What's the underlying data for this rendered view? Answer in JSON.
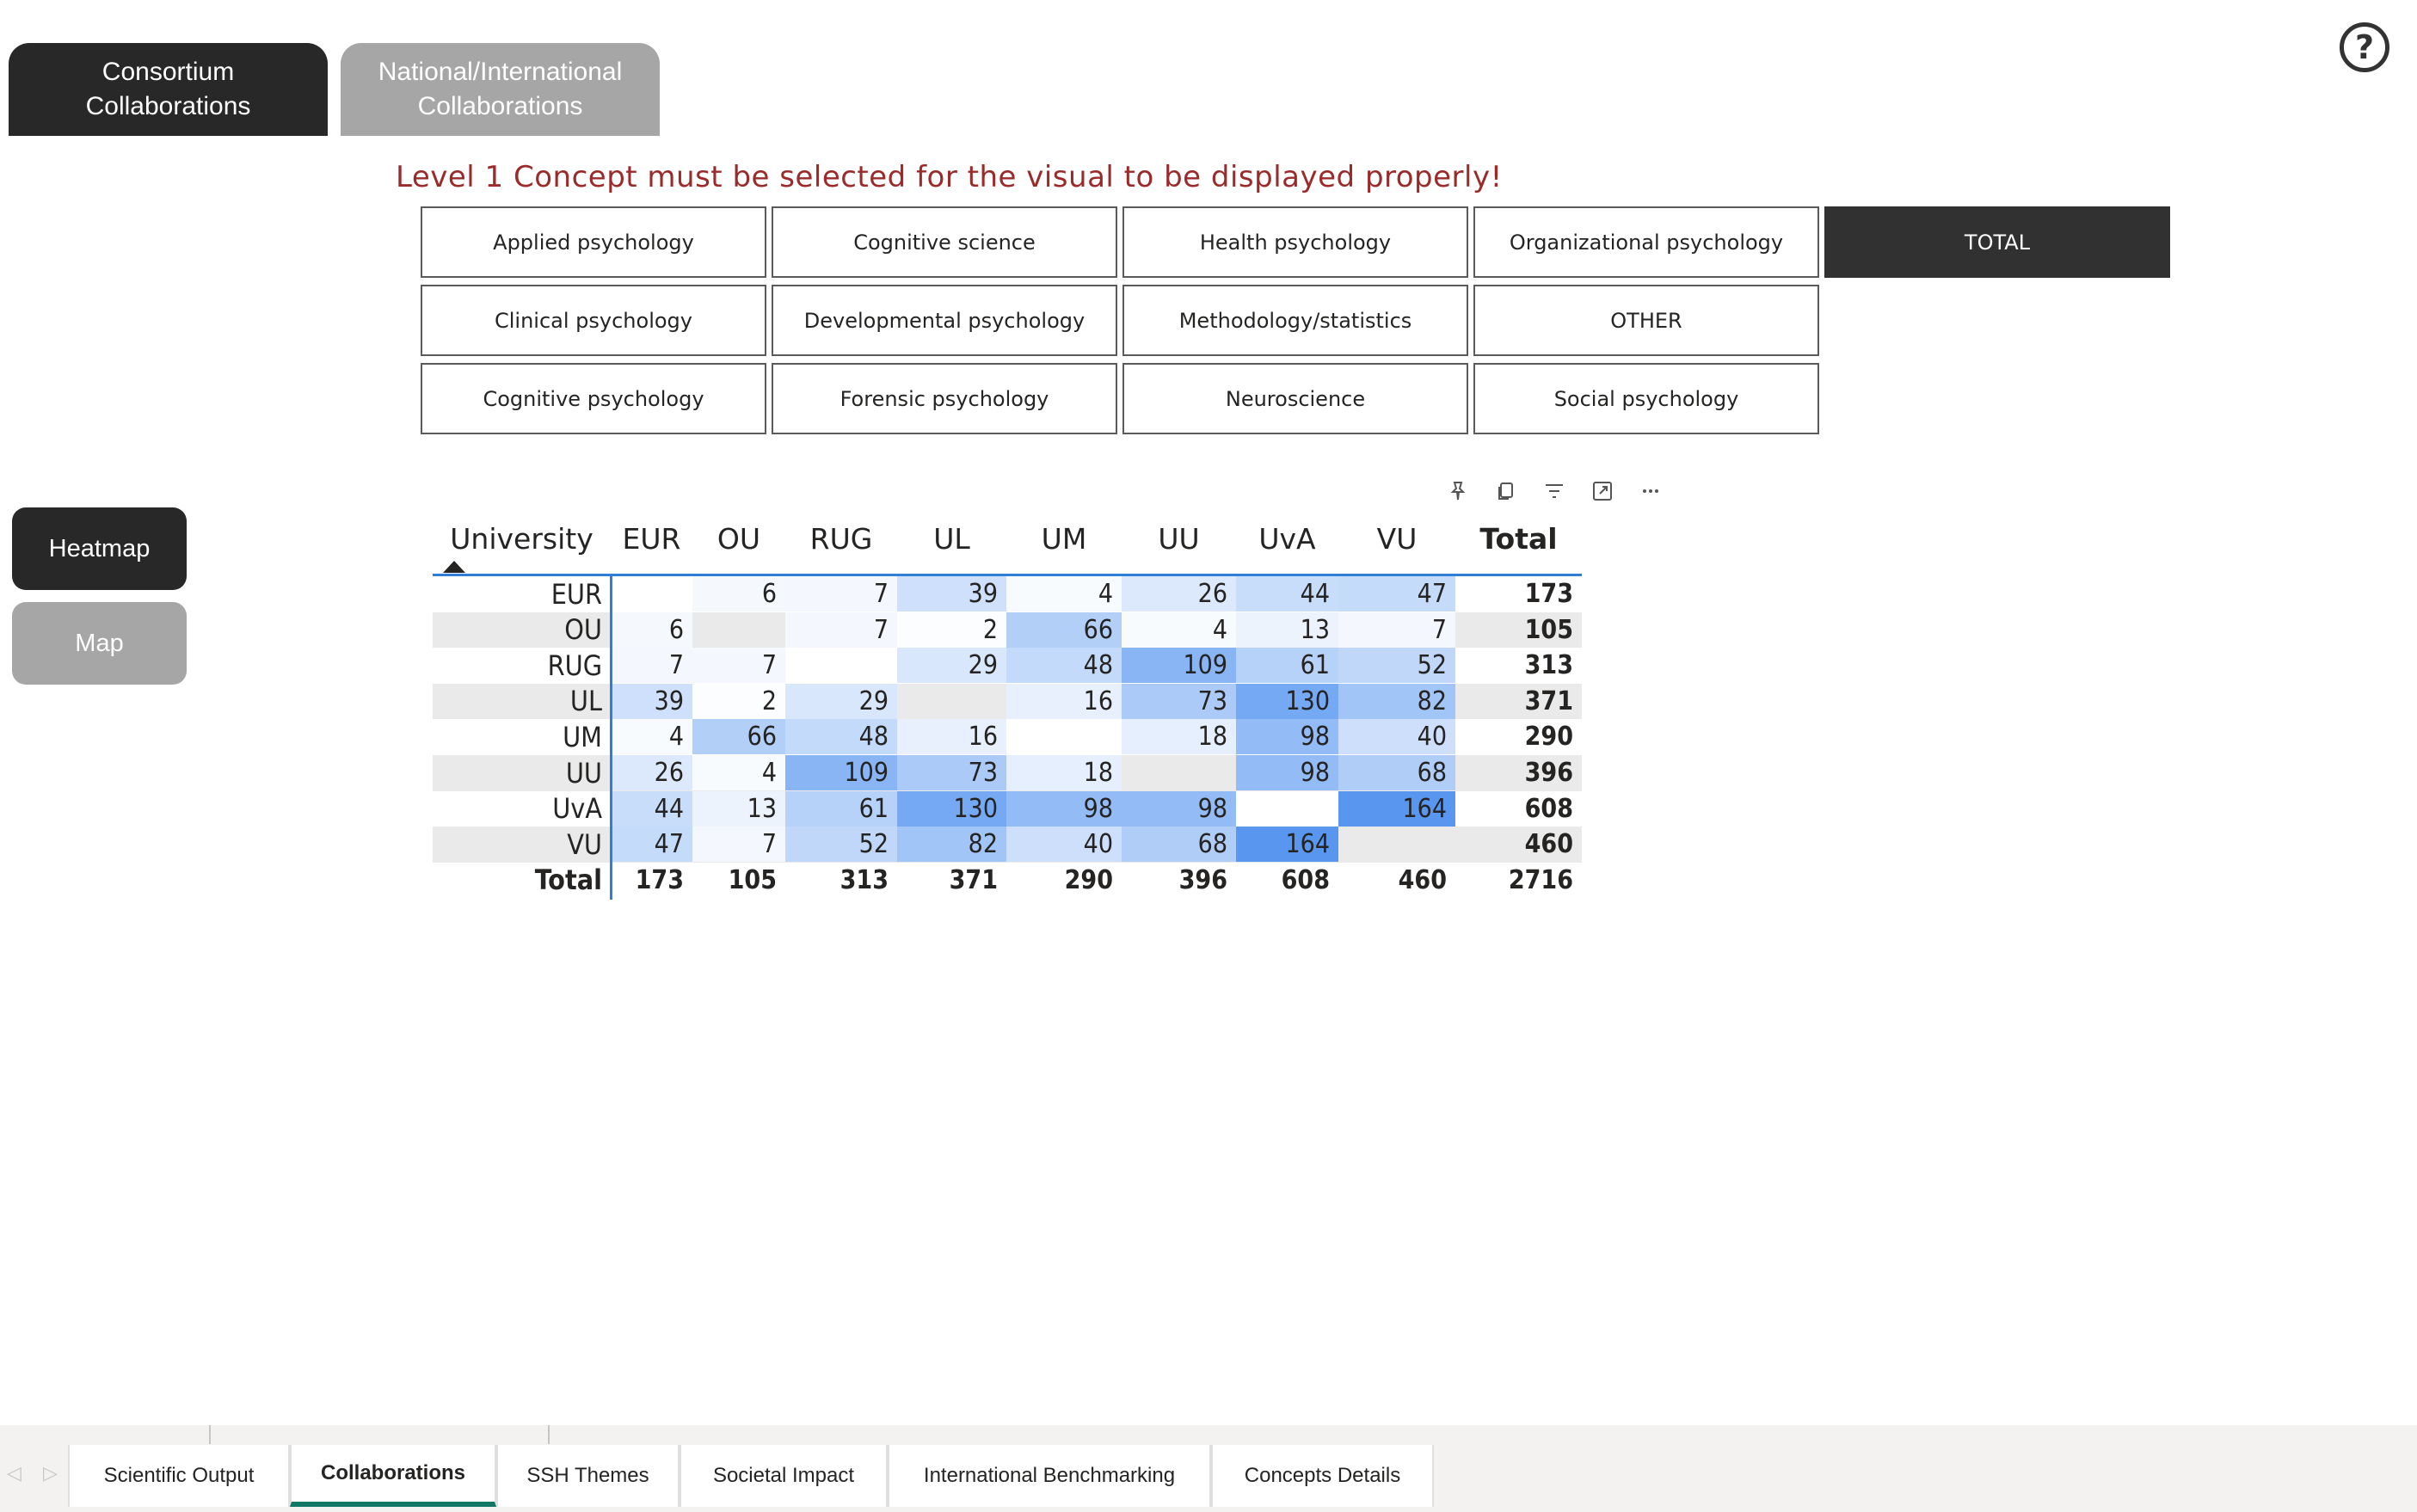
{
  "top_tabs": {
    "consortium": "Consortium Collaborations",
    "national_line1": "National/International",
    "national_line2": "Collaborations"
  },
  "help_icon": "?",
  "warning": "Level 1 Concept must be selected for the visual to be displayed properly!",
  "concepts": [
    {
      "label": "Applied psychology",
      "selected": false
    },
    {
      "label": "Cognitive science",
      "selected": false
    },
    {
      "label": "Health psychology",
      "selected": false
    },
    {
      "label": "Organizational psychology",
      "selected": false
    },
    {
      "label": "TOTAL",
      "selected": true
    },
    {
      "label": "Clinical psychology",
      "selected": false
    },
    {
      "label": "Developmental psychology",
      "selected": false
    },
    {
      "label": "Methodology/statistics",
      "selected": false
    },
    {
      "label": "OTHER",
      "selected": false
    },
    {
      "label": "Cognitive psychology",
      "selected": false
    },
    {
      "label": "Forensic psychology",
      "selected": false
    },
    {
      "label": "Neuroscience",
      "selected": false
    },
    {
      "label": "Social psychology",
      "selected": false
    }
  ],
  "side_buttons": {
    "heatmap": "Heatmap",
    "map": "Map"
  },
  "visual_header_icons": [
    "pin-icon",
    "copy-icon",
    "filter-icon",
    "focus-mode-icon",
    "more-options-icon"
  ],
  "chart_data": {
    "type": "heatmap",
    "corner_label": "University",
    "sort_indicator": "ascending",
    "columns": [
      "EUR",
      "OU",
      "RUG",
      "UL",
      "UM",
      "UU",
      "UvA",
      "VU"
    ],
    "total_label": "Total",
    "rows": [
      {
        "label": "EUR",
        "values": [
          null,
          6,
          7,
          39,
          4,
          26,
          44,
          47
        ],
        "total": 173
      },
      {
        "label": "OU",
        "values": [
          6,
          null,
          7,
          2,
          66,
          4,
          13,
          7
        ],
        "total": 105
      },
      {
        "label": "RUG",
        "values": [
          7,
          7,
          null,
          29,
          48,
          109,
          61,
          52
        ],
        "total": 313
      },
      {
        "label": "UL",
        "values": [
          39,
          2,
          29,
          null,
          16,
          73,
          130,
          82
        ],
        "total": 371
      },
      {
        "label": "UM",
        "values": [
          4,
          66,
          48,
          16,
          null,
          18,
          98,
          40
        ],
        "total": 290
      },
      {
        "label": "UU",
        "values": [
          26,
          4,
          109,
          73,
          18,
          null,
          98,
          68
        ],
        "total": 396
      },
      {
        "label": "UvA",
        "values": [
          44,
          13,
          61,
          130,
          98,
          98,
          null,
          164
        ],
        "total": 608
      },
      {
        "label": "VU",
        "values": [
          47,
          7,
          52,
          82,
          40,
          68,
          164,
          null
        ],
        "total": 460
      }
    ],
    "column_totals": [
      173,
      105,
      313,
      371,
      290,
      396,
      608,
      460
    ],
    "grand_total": 2716,
    "color_scale": {
      "min_color": "#ffffff",
      "max_color": "#5896f0"
    },
    "row_stripe_color": "#eaeaea",
    "accent_line_color": "#2f7fd6"
  },
  "page_tabs": [
    {
      "label": "Scientific Output",
      "active": false
    },
    {
      "label": "Collaborations",
      "active": true
    },
    {
      "label": "SSH Themes",
      "active": false
    },
    {
      "label": "Societal Impact",
      "active": false
    },
    {
      "label": "International Benchmarking",
      "active": false
    },
    {
      "label": "Concepts Details",
      "active": false
    }
  ],
  "footer_arrows": {
    "prev": "◁",
    "next": "▷"
  }
}
